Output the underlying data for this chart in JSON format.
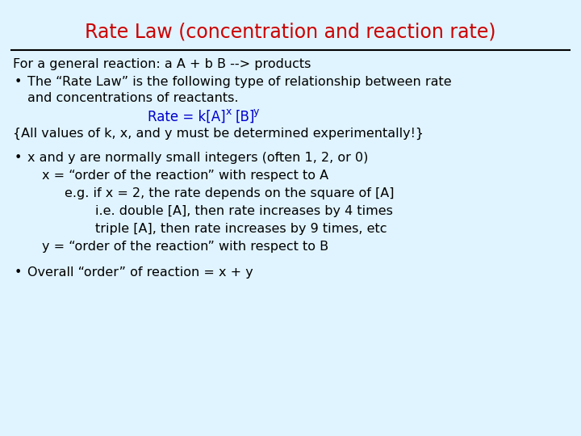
{
  "title": "Rate Law (concentration and reaction rate)",
  "title_color": "#cc0000",
  "bg_color": "#e0f4ff",
  "title_fontsize": 17,
  "body_fontsize": 11.5,
  "formula_fontsize": 12,
  "line1": "For a general reaction: a A + b B --> products",
  "bullet1_line1": "The “Rate Law” is the following type of relationship between rate",
  "bullet1_line2": "and concentrations of reactants.",
  "formula_color": "#0000cc",
  "line2": "{All values of k, x, and y must be determined experimentally!}",
  "bullet2_line1": "x and y are normally small integers (often 1, 2, or 0)",
  "bullet2_line2": "x = “order of the reaction” with respect to A",
  "bullet2_line3": "e.g. if x = 2, the rate depends on the square of [A]",
  "bullet2_line4": "i.e. double [A], then rate increases by 4 times",
  "bullet2_line5": "triple [A], then rate increases by 9 times, etc",
  "bullet2_line6": "y = “order of the reaction” with respect to B",
  "bullet3_line1": "Overall “order” of reaction = x + y",
  "text_color": "#000000"
}
